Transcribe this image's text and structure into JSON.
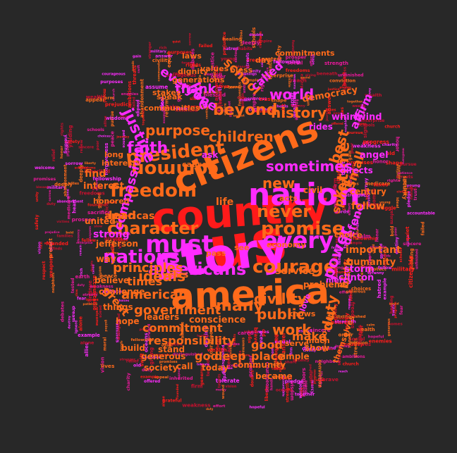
{
  "palette": {
    "background": "#282828",
    "red": "#ff1a1a",
    "orange": "#ff6a1a",
    "magenta": "#ff2bff",
    "pink": "#e8189a",
    "dark_red": "#c8102e"
  },
  "words": [
    {
      "text": "country",
      "color": "#ff1a1a"
    },
    {
      "text": "us",
      "color": "#ff1a1a"
    },
    {
      "text": "story",
      "color": "#ff2bff"
    },
    {
      "text": "america",
      "color": "#ff6a1a"
    },
    {
      "text": "nation",
      "color": "#ff2bff"
    },
    {
      "text": "citizens",
      "color": "#ff6a1a"
    },
    {
      "text": "must",
      "color": "#ff2bff"
    },
    {
      "text": "every",
      "color": "#ff2bff"
    },
    {
      "text": "freedom",
      "color": "#ff6a1a"
    },
    {
      "text": "president",
      "color": "#ff6a1a"
    },
    {
      "text": "common",
      "color": "#ff6a1a"
    },
    {
      "text": "promise",
      "color": "#ff6a1a"
    },
    {
      "text": "courage",
      "color": "#ff6a1a"
    },
    {
      "text": "nations",
      "color": "#ff2bff"
    },
    {
      "text": "americans",
      "color": "#ff2bff"
    },
    {
      "text": "never",
      "color": "#ff6a1a"
    },
    {
      "text": "character",
      "color": "#ff6a1a"
    },
    {
      "text": "justice",
      "color": "#ff2bff"
    },
    {
      "text": "time",
      "color": "#ff6a1a"
    },
    {
      "text": "children",
      "color": "#ff6a1a"
    },
    {
      "text": "beyond",
      "color": "#ff6a1a"
    },
    {
      "text": "history",
      "color": "#ff6a1a"
    },
    {
      "text": "sometimes",
      "color": "#ff2bff"
    },
    {
      "text": "new",
      "color": "#ff6a1a"
    },
    {
      "text": "purpose",
      "color": "#ff6a1a"
    },
    {
      "text": "faith",
      "color": "#ff2bff"
    },
    {
      "text": "power",
      "color": "#ff2bff"
    },
    {
      "text": "many",
      "color": "#ff6a1a"
    },
    {
      "text": "ideals",
      "color": "#ff6a1a"
    },
    {
      "text": "government",
      "color": "#ff6a1a"
    },
    {
      "text": "civility",
      "color": "#ff6a1a"
    },
    {
      "text": "public",
      "color": "#ff6a1a"
    },
    {
      "text": "work",
      "color": "#ff6a1a"
    },
    {
      "text": "duty",
      "color": "#ff6a1a"
    },
    {
      "text": "american",
      "color": "#ff6a1a"
    },
    {
      "text": "principles",
      "color": "#ff6a1a"
    },
    {
      "text": "compassion",
      "color": "#ff2bff"
    },
    {
      "text": "best",
      "color": "#ff6a1a"
    },
    {
      "text": "world",
      "color": "#ff2bff"
    },
    {
      "text": "live",
      "color": "#ff2bff"
    },
    {
      "text": "thank",
      "color": "#ff2bff"
    },
    {
      "text": "everyone",
      "color": "#ff2bff"
    },
    {
      "text": "school",
      "color": "#ff6a1a"
    },
    {
      "text": "called",
      "color": "#ff2bff"
    },
    {
      "text": "affirm",
      "color": "#ff2bff"
    },
    {
      "text": "lead",
      "color": "#ff6a1a"
    },
    {
      "text": "times",
      "color": "#ff6a1a"
    },
    {
      "text": "commitment",
      "color": "#ff6a1a"
    },
    {
      "text": "responsibility",
      "color": "#ff6a1a"
    },
    {
      "text": "god",
      "color": "#ff6a1a"
    },
    {
      "text": "deep",
      "color": "#ff6a1a"
    },
    {
      "text": "good",
      "color": "#ff6a1a"
    },
    {
      "text": "place",
      "color": "#ff6a1a"
    },
    {
      "text": "spirit",
      "color": "#ff6a1a"
    },
    {
      "text": "birth",
      "color": "#ff6a1a"
    },
    {
      "text": "great",
      "color": "#ff6a1a"
    },
    {
      "text": "defend",
      "color": "#ff2bff"
    },
    {
      "text": "small",
      "color": "#ff6a1a"
    },
    {
      "text": "yet",
      "color": "#ff6a1a"
    },
    {
      "text": "make",
      "color": "#ff6a1a"
    },
    {
      "text": "service",
      "color": "#ff6a1a"
    },
    {
      "text": "americas",
      "color": "#ff6a1a"
    },
    {
      "text": "strong",
      "color": "#ff2bff"
    },
    {
      "text": "find",
      "color": "#ff6a1a"
    },
    {
      "text": "interest",
      "color": "#ff6a1a"
    },
    {
      "text": "life",
      "color": "#ff6a1a"
    },
    {
      "text": "important",
      "color": "#ff6a1a"
    },
    {
      "text": "follow",
      "color": "#ff6a1a"
    },
    {
      "text": "humanity",
      "color": "#ff6a1a"
    },
    {
      "text": "clinton",
      "color": "#ff2bff"
    },
    {
      "text": "way",
      "color": "#ff6a1a"
    },
    {
      "text": "storm",
      "color": "#ff2bff"
    },
    {
      "text": "democracy",
      "color": "#ff6a1a"
    },
    {
      "text": "angel",
      "color": "#ff2bff"
    },
    {
      "text": "directs",
      "color": "#ff2bff"
    },
    {
      "text": "whirlwind",
      "color": "#ff2bff"
    },
    {
      "text": "century",
      "color": "#ff6a1a"
    },
    {
      "text": "civil",
      "color": "#ff6a1a"
    },
    {
      "text": "rides",
      "color": "#ff2bff"
    },
    {
      "text": "conscience",
      "color": "#ff6a1a"
    },
    {
      "text": "believe",
      "color": "#ff6a1a"
    },
    {
      "text": "challenge",
      "color": "#ff6a1a"
    },
    {
      "text": "hope",
      "color": "#ff6a1a"
    },
    {
      "text": "leaders",
      "color": "#ff6a1a"
    },
    {
      "text": "years",
      "color": "#ff6a1a"
    },
    {
      "text": "things",
      "color": "#ff6a1a"
    },
    {
      "text": "build",
      "color": "#ff6a1a"
    },
    {
      "text": "generous",
      "color": "#ff6a1a"
    },
    {
      "text": "stand",
      "color": "#ff6a1a"
    },
    {
      "text": "society",
      "color": "#ff6a1a"
    },
    {
      "text": "call",
      "color": "#ff6a1a"
    },
    {
      "text": "today",
      "color": "#ff6a1a"
    },
    {
      "text": "community",
      "color": "#ff6a1a"
    },
    {
      "text": "became",
      "color": "#ff6a1a"
    },
    {
      "text": "simple",
      "color": "#ff6a1a"
    },
    {
      "text": "show",
      "color": "#ff6a1a"
    },
    {
      "text": "problems",
      "color": "#ff6a1a"
    },
    {
      "text": "economy",
      "color": "#ff6a1a"
    },
    {
      "text": "pass",
      "color": "#ff6a1a"
    },
    {
      "text": "see",
      "color": "#ff6a1a"
    },
    {
      "text": "jefferson",
      "color": "#ff6a1a"
    },
    {
      "text": "united",
      "color": "#ff6a1a"
    },
    {
      "text": "honored",
      "color": "#ff6a1a"
    },
    {
      "text": "interests",
      "color": "#ff6a1a"
    },
    {
      "text": "long",
      "color": "#ff6a1a"
    },
    {
      "text": "communities",
      "color": "#ff6a1a"
    },
    {
      "text": "speak",
      "color": "#ff6a1a"
    },
    {
      "text": "stakes",
      "color": "#ff6a1a"
    },
    {
      "text": "generations",
      "color": "#ff6a1a"
    },
    {
      "text": "dignity",
      "color": "#ff6a1a"
    },
    {
      "text": "values",
      "color": "#ff6a1a"
    },
    {
      "text": "bless",
      "color": "#ff6a1a"
    },
    {
      "text": "laws",
      "color": "#ff6a1a"
    },
    {
      "text": "day",
      "color": "#ff6a1a"
    },
    {
      "text": "commitments",
      "color": "#ff6a1a"
    },
    {
      "text": "acts",
      "color": "#ff6a1a"
    },
    {
      "text": "cause",
      "color": "#ff6a1a"
    },
    {
      "text": "ask",
      "color": "#ff2bff"
    },
    {
      "text": "poverty",
      "color": "#ff6a1a"
    },
    {
      "text": "choice",
      "color": "#ff6a1a"
    },
    {
      "text": "love",
      "color": "#ff2bff"
    },
    {
      "text": "mercy",
      "color": "#ff2bff"
    },
    {
      "text": "much",
      "color": "#ff6a1a"
    },
    {
      "text": "knows",
      "color": "#ff6a1a"
    },
    {
      "text": "themselves",
      "color": "#ff6a1a"
    },
    {
      "text": "serve",
      "color": "#ff6a1a"
    }
  ],
  "small_words": [
    "bold",
    "swift",
    "calm",
    "freedoms",
    "heart",
    "sacrifice",
    "dream",
    "trust",
    "peace",
    "liberty",
    "courageous",
    "unity",
    "wisdom",
    "honor",
    "vision",
    "duty",
    "homes",
    "streets",
    "neighbors",
    "fellow",
    "citizenship",
    "founded",
    "enterprise",
    "charity",
    "church",
    "families",
    "schools",
    "young",
    "old",
    "fear",
    "hatred",
    "wealth",
    "talents",
    "destiny",
    "earth",
    "oceans",
    "civility",
    "tyranny",
    "security",
    "weakness",
    "allies",
    "enemies",
    "progress",
    "slow",
    "patience",
    "example",
    "sincere",
    "journey",
    "conviction",
    "pledge",
    "promises",
    "abandonment",
    "decency",
    "effort",
    "strength",
    "fellowship",
    "grateful",
    "hands",
    "words",
    "debates",
    "ideal",
    "generous",
    "distinguished",
    "accountable",
    "choices",
    "guided",
    "rights",
    "equal",
    "alone",
    "together",
    "cared",
    "failed",
    "sorrow",
    "prejudice",
    "answer",
    "doubts",
    "visible",
    "rich",
    "poor",
    "schools",
    "reform",
    "medicare",
    "taxes",
    "relief",
    "social",
    "military",
    "threats",
    "weapons",
    "terror",
    "mission",
    "victims",
    "beneath",
    "protect",
    "healing",
    "quiet",
    "habits",
    "spend",
    "lives",
    "worthy",
    "tested",
    "deeply",
    "firm",
    "hopeful",
    "brave",
    "renew",
    "share",
    "blessed",
    "struggle",
    "forgiveness",
    "inherited",
    "ambitions",
    "appeal",
    "empire",
    "assume",
    "shape",
    "serious",
    "continue",
    "pursue",
    "beginnings",
    "commands",
    "example",
    "finds",
    "forward",
    "gain",
    "giving",
    "ignore",
    "justice",
    "moral",
    "mercy",
    "offered",
    "order",
    "prosper",
    "purposes",
    "reach",
    "remain",
    "respect",
    "safety",
    "signs",
    "stranger",
    "tolerate",
    "unfinished",
    "unjust",
    "wealth",
    "welcome",
    "wound",
    "yielding"
  ]
}
